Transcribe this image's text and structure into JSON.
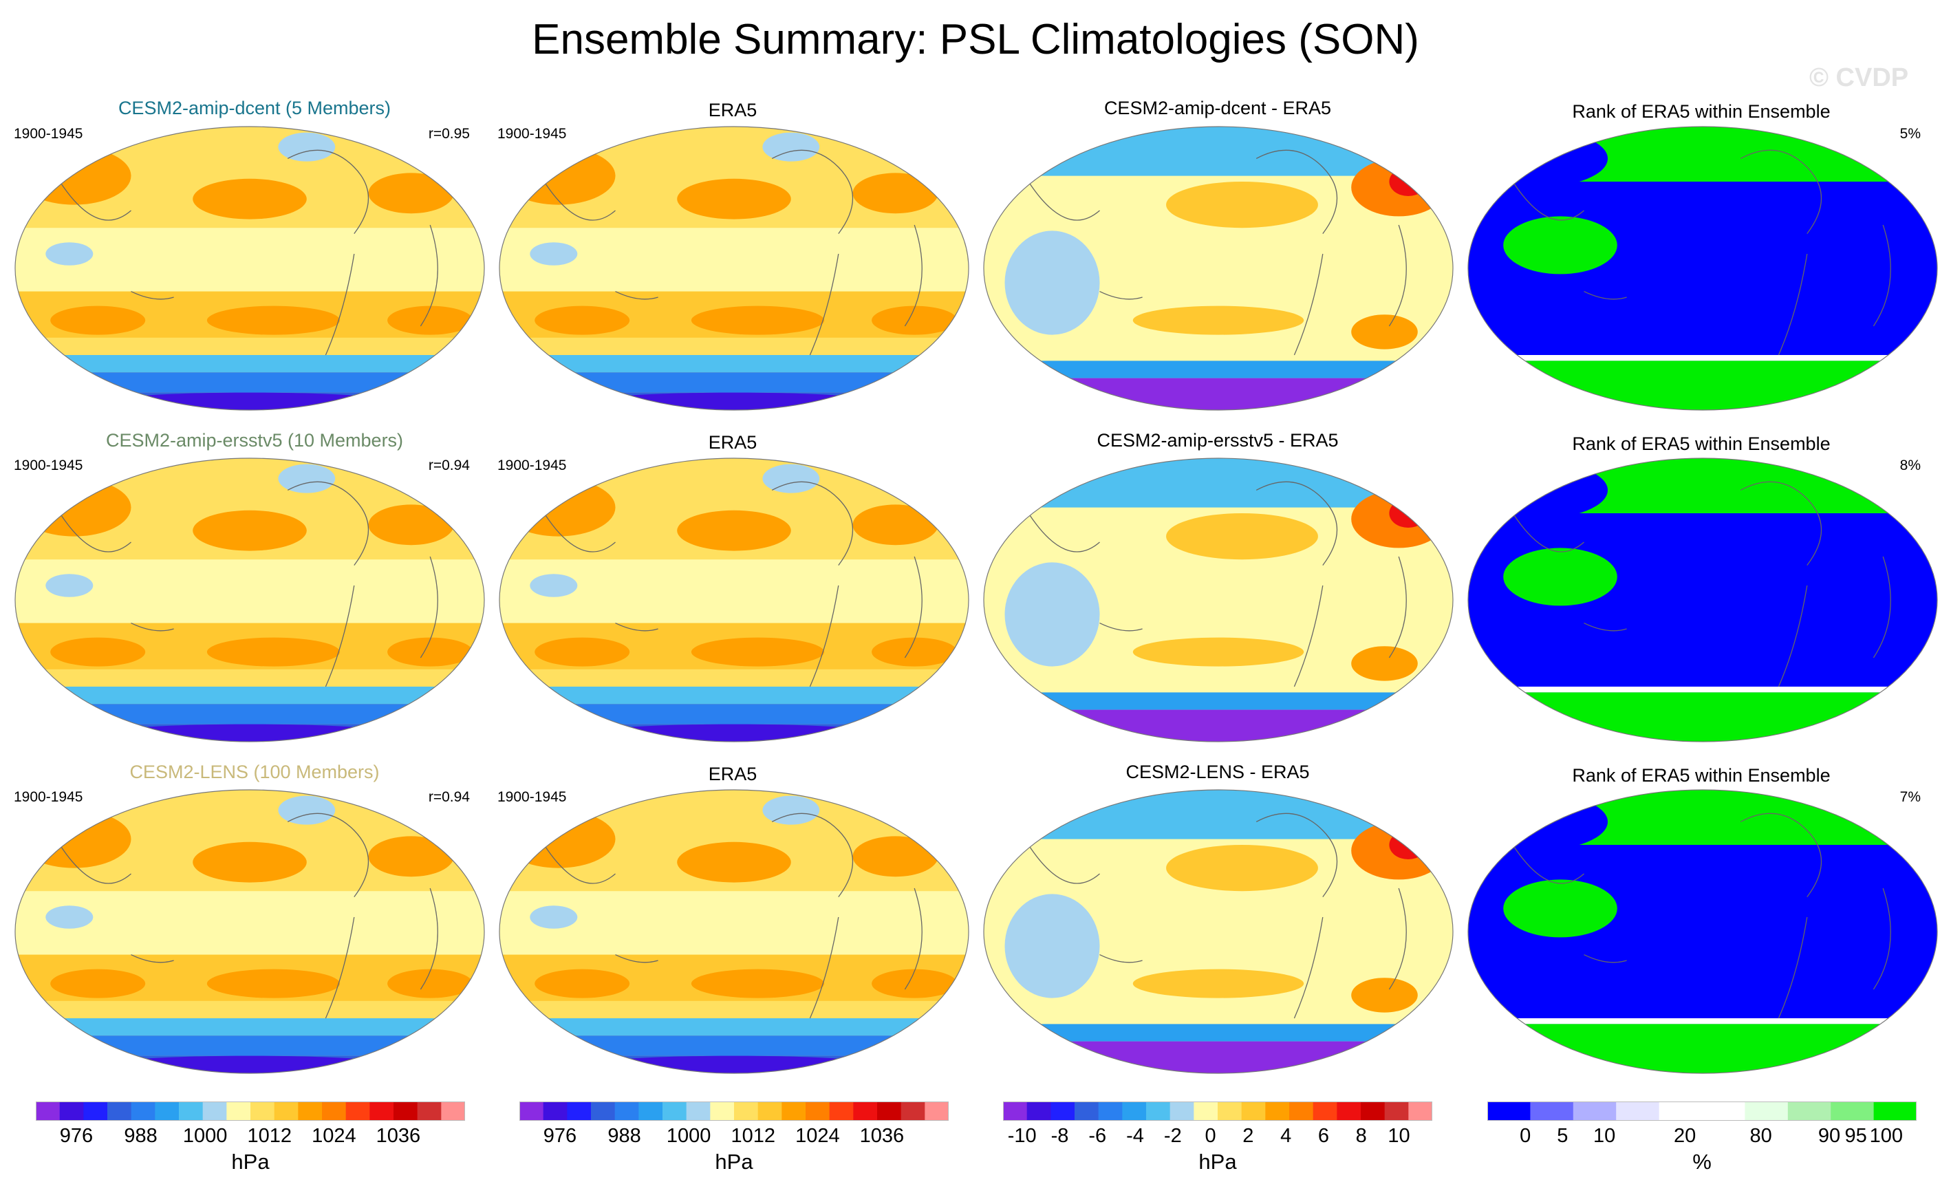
{
  "title": "Ensemble Summary: PSL Climatologies (SON)",
  "watermark": "© CVDP",
  "rows": [
    {
      "ensemble": {
        "title": "CESM2-amip-dcent (5 Members)",
        "title_color": "#19758d",
        "period": "1900-1945",
        "r": "r=0.95"
      },
      "obs": {
        "title": "ERA5",
        "period": "1900-1945"
      },
      "diff": {
        "title": "CESM2-amip-dcent - ERA5"
      },
      "rank": {
        "title": "Rank of ERA5 within Ensemble",
        "pct": "5%"
      }
    },
    {
      "ensemble": {
        "title": "CESM2-amip-ersstv5 (10 Members)",
        "title_color": "#6a8a66",
        "period": "1900-1945",
        "r": "r=0.94"
      },
      "obs": {
        "title": "ERA5",
        "period": "1900-1945"
      },
      "diff": {
        "title": "CESM2-amip-ersstv5 - ERA5"
      },
      "rank": {
        "title": "Rank of ERA5 within Ensemble",
        "pct": "8%"
      }
    },
    {
      "ensemble": {
        "title": "CESM2-LENS (100 Members)",
        "title_color": "#c9b97a",
        "period": "1900-1945",
        "r": "r=0.94"
      },
      "obs": {
        "title": "ERA5",
        "period": "1900-1945"
      },
      "diff": {
        "title": "CESM2-LENS - ERA5"
      },
      "rank": {
        "title": "Rank of ERA5 within Ensemble",
        "pct": "7%"
      }
    }
  ],
  "colorbars": {
    "psl": {
      "unit": "hPa",
      "labels": [
        "976",
        "988",
        "1000",
        "1012",
        "1024",
        "1036"
      ],
      "colors": [
        "#8a2be2",
        "#4010e0",
        "#2020ff",
        "#3060dd",
        "#2a80f0",
        "#2aa0f0",
        "#50c0f0",
        "#a8d4f0",
        "#fffaaa",
        "#ffe060",
        "#ffc830",
        "#ffa000",
        "#ff8000",
        "#ff4010",
        "#ee1010",
        "#cc0000",
        "#d03030",
        "#ff9090"
      ]
    },
    "diff": {
      "unit": "hPa",
      "labels": [
        "-10",
        "-8",
        "-6",
        "-4",
        "-2",
        "0",
        "2",
        "4",
        "6",
        "8",
        "10"
      ],
      "colors": [
        "#8a2be2",
        "#4010e0",
        "#2020ff",
        "#3060dd",
        "#2a80f0",
        "#2aa0f0",
        "#50c0f0",
        "#a8d4f0",
        "#fffaaa",
        "#ffe060",
        "#ffc830",
        "#ffa000",
        "#ff8000",
        "#ff4010",
        "#ee1010",
        "#cc0000",
        "#d03030",
        "#ff9090"
      ]
    },
    "rank": {
      "unit": "%",
      "labels": [
        "0",
        "5",
        "10",
        "20",
        "80",
        "90",
        "95",
        "100"
      ],
      "colors": [
        "#0000ff",
        "#6a6aff",
        "#b0b0ff",
        "#e4e4ff",
        "#ffffff",
        "#ffffff",
        "#e4ffe4",
        "#b0f0b0",
        "#80f080",
        "#00ee00"
      ]
    }
  }
}
